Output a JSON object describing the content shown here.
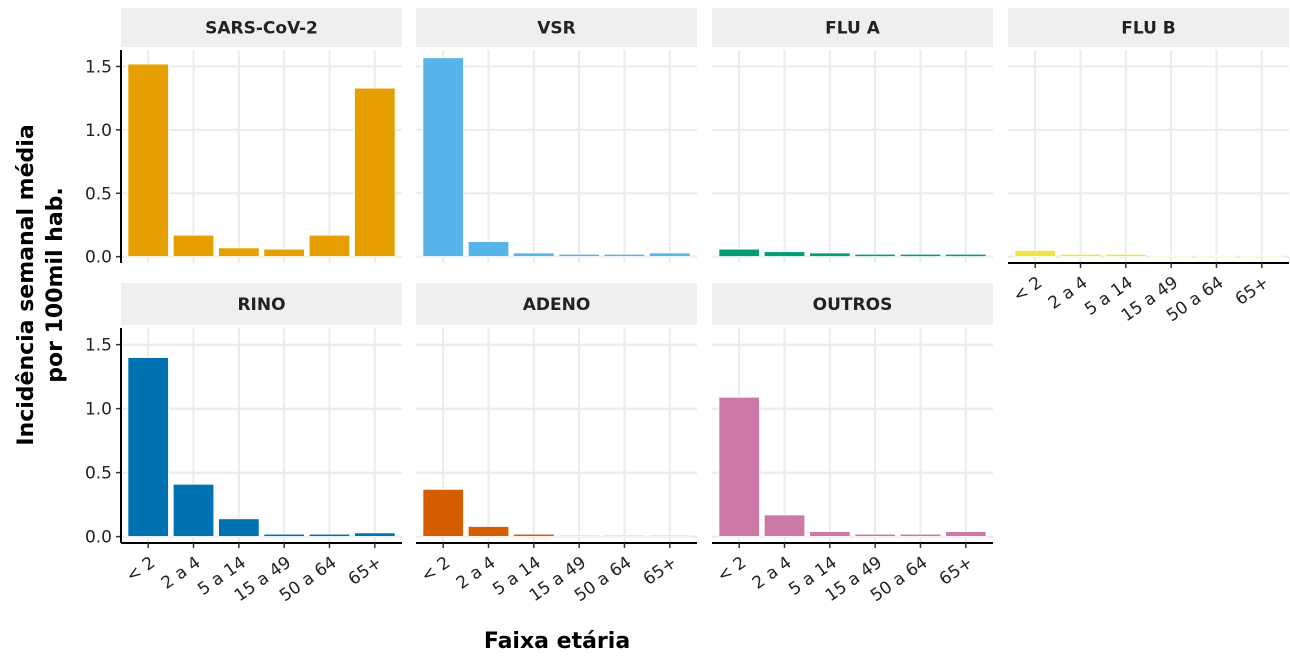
{
  "chart_data": {
    "type": "bar",
    "layout": "facets",
    "y_label": [
      "Incidência  semanal média",
      "por 100mil hab."
    ],
    "x_label": "Faixa etária",
    "categories": [
      "< 2",
      "2 a 4",
      "5 a 14",
      "15 a 49",
      "50 a 64",
      "65+"
    ],
    "ylim": [
      -0.05,
      1.63
    ],
    "yticks": [
      {
        "value": 0,
        "label": "0.0"
      },
      0.5,
      {
        "value": 1,
        "label": "1.0"
      },
      1.5
    ],
    "grid": true,
    "series": [
      {
        "name": "SARS-CoV-2",
        "color": "#E69F00",
        "values": [
          1.52,
          0.17,
          0.07,
          0.06,
          0.17,
          1.33
        ]
      },
      {
        "name": "VSR",
        "color": "#56B4E9",
        "values": [
          1.57,
          0.12,
          0.03,
          0.02,
          0.02,
          0.03
        ]
      },
      {
        "name": "FLU A",
        "color": "#009E73",
        "values": [
          0.06,
          0.04,
          0.03,
          0.02,
          0.02,
          0.02
        ]
      },
      {
        "name": "FLU B",
        "color": "#F0E442",
        "values": [
          0.05,
          0.02,
          0.02,
          0.01,
          0.01,
          0.01
        ]
      },
      {
        "name": "RINO",
        "color": "#0072B2",
        "values": [
          1.4,
          0.41,
          0.14,
          0.02,
          0.02,
          0.03
        ]
      },
      {
        "name": "ADENO",
        "color": "#D55E00",
        "values": [
          0.37,
          0.08,
          0.02,
          0.01,
          0.01,
          0.01
        ]
      },
      {
        "name": "OUTROS",
        "color": "#CC79A7",
        "values": [
          1.09,
          0.17,
          0.04,
          0.02,
          0.02,
          0.04
        ]
      }
    ]
  }
}
